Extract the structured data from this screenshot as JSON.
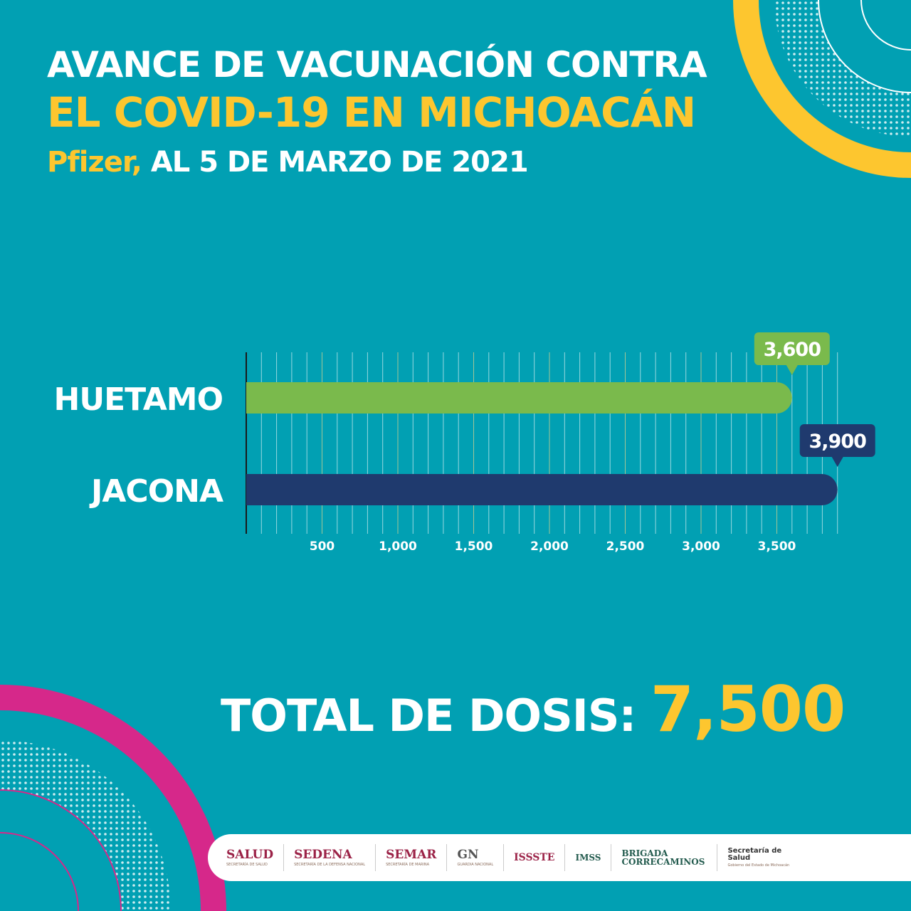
{
  "header": {
    "line1": "AVANCE DE VACUNACIÓN CONTRA",
    "line2": "EL COVID-19 EN MICHOACÁN",
    "line3_highlight": "Pfizer,",
    "line3_rest": " AL 5 DE MARZO DE 2021"
  },
  "chart_data": {
    "type": "bar",
    "orientation": "horizontal",
    "categories": [
      "HUETAMO",
      "JACONA"
    ],
    "values": [
      3600,
      3900
    ],
    "data_labels": [
      "3,600",
      "3,900"
    ],
    "colors": [
      "#7aba4c",
      "#1f3a6e"
    ],
    "xticks": [
      "500",
      "1,000",
      "1,500",
      "2,000",
      "2,500",
      "3,000",
      "3,500"
    ],
    "xtick_values": [
      500,
      1000,
      1500,
      2000,
      2500,
      3000,
      3500
    ],
    "xlim": [
      0,
      3900
    ],
    "grid": true,
    "title": "",
    "xlabel": "",
    "ylabel": ""
  },
  "total": {
    "label": "TOTAL DE DOSIS:",
    "value": "7,500"
  },
  "footer": {
    "logos": [
      {
        "name": "SALUD",
        "sub": "SECRETARÍA DE SALUD"
      },
      {
        "name": "SEDENA",
        "sub": "SECRETARÍA DE LA DEFENSA NACIONAL"
      },
      {
        "name": "SEMAR",
        "sub": "SECRETARÍA DE MARINA"
      },
      {
        "name": "GN",
        "sub": "GUARDIA NACIONAL"
      },
      {
        "name": "ISSSTE"
      },
      {
        "name": "IMSS"
      },
      {
        "name": "BRIGADA CORRECAMINOS"
      },
      {
        "name": "Secretaría de Salud",
        "sub": "Gobierno del Estado de Michoacán"
      }
    ]
  },
  "colors": {
    "background": "#01a0b3",
    "yellow": "#fdc62f",
    "magenta": "#d6288a",
    "green": "#7aba4c",
    "navy": "#1f3a6e"
  }
}
